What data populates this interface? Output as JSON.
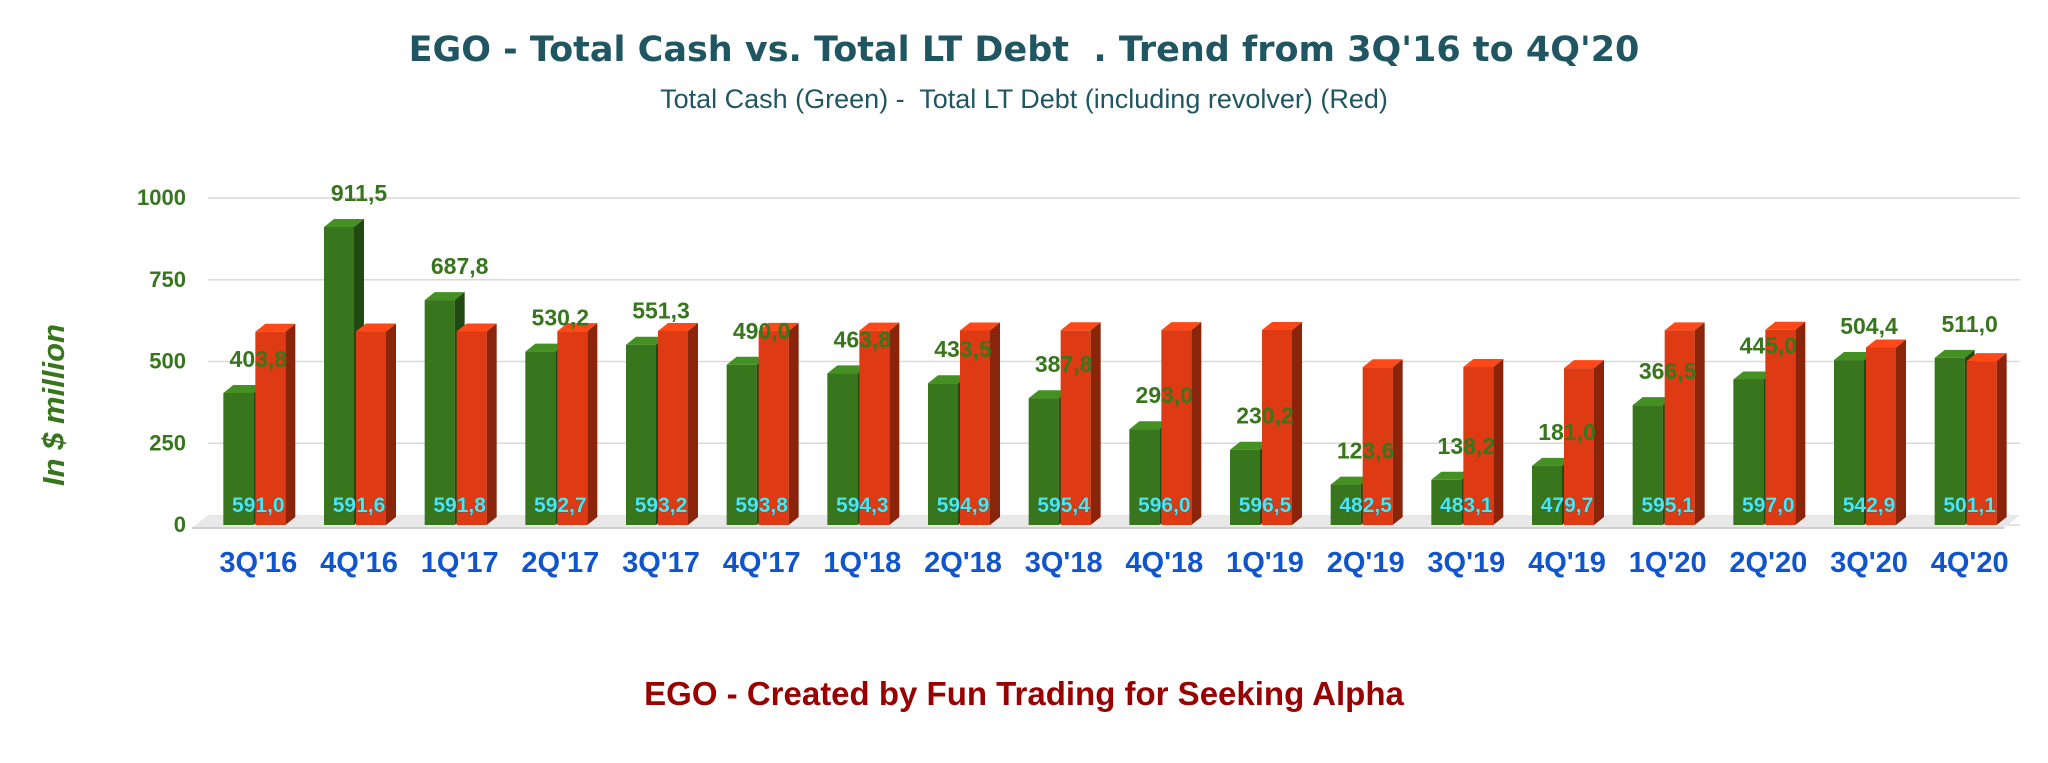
{
  "chart_data": {
    "type": "bar",
    "title": "EGO - Total Cash vs. Total LT Debt  . Trend from 3Q'16 to 4Q'20",
    "subtitle": "Total Cash (Green) -  Total LT Debt (including revolver) (Red)",
    "ylabel": "In $ million",
    "xlabel": "",
    "ylim": [
      0,
      1000
    ],
    "yticks": [
      0,
      250,
      500,
      750,
      1000
    ],
    "grid": true,
    "categories": [
      "3Q'16",
      "4Q'16",
      "1Q'17",
      "2Q'17",
      "3Q'17",
      "4Q'17",
      "1Q'18",
      "2Q'18",
      "3Q'18",
      "4Q'18",
      "1Q'19",
      "2Q'19",
      "3Q'19",
      "4Q'19",
      "1Q'20",
      "2Q'20",
      "3Q'20",
      "4Q'20"
    ],
    "series": [
      {
        "key": "cash",
        "color": "#38761d",
        "values": [
          403.8,
          911.5,
          687.8,
          530.2,
          551.3,
          490.0,
          463.8,
          433.5,
          387.8,
          293.0,
          230.2,
          123.6,
          138.2,
          181.0,
          366.5,
          445.0,
          504.4,
          511.0
        ],
        "value_labels": [
          "403,8",
          "911,5",
          "687,8",
          "530,2",
          "551,3",
          "490,0",
          "463,8",
          "433,5",
          "387,8",
          "293,0",
          "230,2",
          "123,6",
          "138,2",
          "181,0",
          "366,5",
          "445,0",
          "504,4",
          "511,0"
        ]
      },
      {
        "key": "debt",
        "color": "#de3b14",
        "values": [
          591.0,
          591.6,
          591.8,
          592.7,
          593.2,
          593.8,
          594.3,
          594.9,
          595.4,
          596.0,
          596.5,
          482.5,
          483.1,
          479.7,
          595.1,
          597.0,
          542.9,
          501.1
        ],
        "value_labels": [
          "591,0",
          "591,6",
          "591,8",
          "592,7",
          "593,2",
          "593,8",
          "594,3",
          "594,9",
          "595,4",
          "596,0",
          "596,5",
          "482,5",
          "483,1",
          "479,7",
          "595,1",
          "597,0",
          "542,9",
          "501,1"
        ]
      }
    ],
    "colors": {
      "cash_label": "#38761d",
      "debt_label": "#4ee6ee",
      "category": "#1155cc",
      "tick": "#38761d",
      "grid": "#d9d9d9"
    },
    "footer": "EGO - Created by Fun Trading for Seeking Alpha"
  }
}
